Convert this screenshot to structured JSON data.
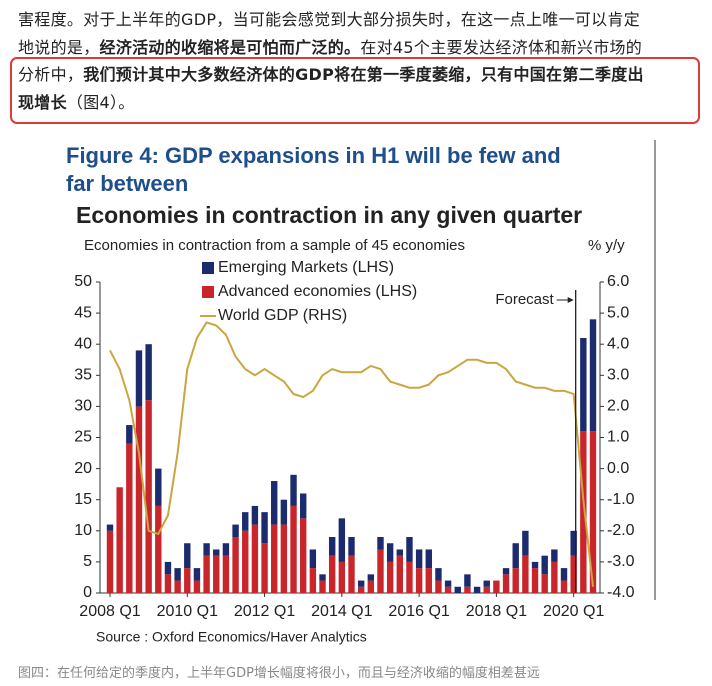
{
  "article": {
    "lines": [
      [
        {
          "text": "害程度。对于上半年的GDP，当可能会感觉到大部分损失时，在这一点上唯一可以肯定",
          "bold": false
        }
      ],
      [
        {
          "text": "地说的是，",
          "bold": false
        },
        {
          "text": "经济活动的收缩将是可怕而广泛的。",
          "bold": true
        },
        {
          "text": "在对45个主要发达经济体和新兴市场的",
          "bold": false
        }
      ],
      [
        {
          "text": "分析中，",
          "bold": false
        },
        {
          "text": "我们预计其中大多数经济体的GDP将在第一季度萎缩，只有中国在第二季度出",
          "bold": true
        }
      ],
      [
        {
          "text": "现增长",
          "bold": true
        },
        {
          "text": "（图4）。",
          "bold": false
        }
      ]
    ]
  },
  "chart_data": {
    "type": "bar-line",
    "title": [
      "Figure 4: GDP expansions in H1 will be few and",
      "far between"
    ],
    "subtitle": "Economies in contraction in any given quarter",
    "ylabel": "Economies in contraction from a sample of 45 economies",
    "y2label": "% y/y",
    "source": "Source : Oxford Economics/Haver Analytics",
    "categories": [
      "2008 Q1",
      null,
      null,
      null,
      null,
      null,
      null,
      null,
      "2010 Q1",
      null,
      null,
      null,
      null,
      null,
      null,
      null,
      "2012 Q1",
      null,
      null,
      null,
      null,
      null,
      null,
      null,
      "2014 Q1",
      null,
      null,
      null,
      null,
      null,
      null,
      null,
      "2016 Q1",
      null,
      null,
      null,
      null,
      null,
      null,
      null,
      "2018 Q1",
      null,
      null,
      null,
      null,
      null,
      null,
      null,
      "2020 Q1",
      null,
      null
    ],
    "series": [
      {
        "name": "Advanced economies (LHS)",
        "color": "#c9262c",
        "kind": "bar",
        "values": [
          10,
          17,
          24,
          30,
          31,
          14,
          3,
          2,
          4,
          2,
          6,
          6,
          6,
          9,
          10,
          11,
          8,
          11,
          11,
          14,
          12,
          4,
          2,
          6,
          5,
          6,
          1,
          2,
          7,
          5,
          6,
          5,
          4,
          4,
          2,
          1,
          0,
          1,
          0,
          1,
          2,
          3,
          4,
          6,
          4,
          3,
          5,
          2,
          6,
          26,
          26
        ]
      },
      {
        "name": "Emerging Markets (LHS)",
        "color": "#1c2a6e",
        "kind": "bar",
        "values": [
          1,
          0,
          3,
          9,
          9,
          6,
          2,
          2,
          4,
          2,
          2,
          1,
          2,
          2,
          3,
          3,
          5,
          7,
          4,
          5,
          4,
          3,
          1,
          3,
          7,
          3,
          1,
          1,
          2,
          3,
          1,
          4,
          3,
          3,
          2,
          1,
          1,
          2,
          1,
          1,
          0,
          1,
          4,
          4,
          1,
          3,
          2,
          2,
          4,
          15,
          18
        ]
      },
      {
        "name": "World GDP (RHS)",
        "color": "#c9a640",
        "kind": "line",
        "axis": "y2",
        "values": [
          3.8,
          3.2,
          2.2,
          0.5,
          -2.0,
          -2.1,
          -1.5,
          0.5,
          3.2,
          4.2,
          4.7,
          4.6,
          4.3,
          3.6,
          3.2,
          3.0,
          3.2,
          3.0,
          2.8,
          2.4,
          2.3,
          2.5,
          3.0,
          3.2,
          3.1,
          3.1,
          3.1,
          3.3,
          3.2,
          2.8,
          2.7,
          2.6,
          2.6,
          2.7,
          3.0,
          3.1,
          3.3,
          3.5,
          3.5,
          3.4,
          3.4,
          3.2,
          2.8,
          2.7,
          2.6,
          2.6,
          2.5,
          2.5,
          2.4,
          -1.0,
          -3.8
        ]
      }
    ],
    "legend_order": [
      1,
      0,
      2
    ],
    "legend": "upper left",
    "annotations": [
      {
        "text": "Forecast",
        "index": 48
      }
    ],
    "ylim": [
      0,
      50
    ],
    "yticks": [
      0,
      5,
      10,
      15,
      20,
      25,
      30,
      35,
      40,
      45,
      50
    ],
    "y2lim": [
      -4,
      6
    ],
    "y2ticks": [
      {
        "value": -4,
        "label": "-4.0"
      },
      {
        "value": -3,
        "label": "-3.0"
      },
      {
        "value": -2,
        "label": "-2.0"
      },
      {
        "value": -1,
        "label": "-1.0"
      },
      {
        "value": 0,
        "label": "0.0"
      },
      {
        "value": 1,
        "label": "1.0"
      },
      {
        "value": 2,
        "label": "2.0"
      },
      {
        "value": 3,
        "label": "3.0"
      },
      {
        "value": 4,
        "label": "4.0"
      },
      {
        "value": 5,
        "label": "5.0"
      },
      {
        "value": 6,
        "label": "6.0"
      }
    ],
    "grid": false
  },
  "caption": "图四：在任何给定的季度内，上半年GDP增长幅度将很小，而且与经济收缩的幅度相差甚远"
}
